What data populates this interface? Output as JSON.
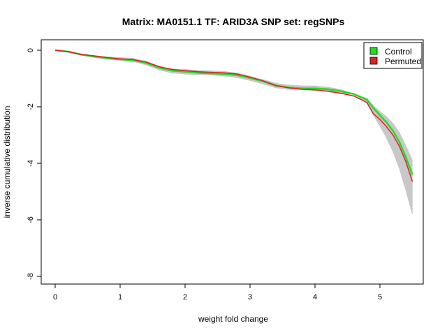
{
  "chart_data": {
    "type": "line",
    "title": "Matrix: MA0151.1 TF: ARID3A SNP set: regSNPs",
    "xlabel": "weight fold change",
    "ylabel": "inverse cumulative distribution",
    "xlim": [
      0,
      5.5
    ],
    "ylim": [
      -8,
      0
    ],
    "xticks": [
      "0",
      "1",
      "2",
      "3",
      "4",
      "5"
    ],
    "yticks": [
      "0",
      "-2",
      "-4",
      "-6",
      "-8"
    ],
    "legend_position": "top-right",
    "grid": false,
    "x": [
      0,
      0.2,
      0.4,
      0.6,
      0.8,
      1.0,
      1.2,
      1.4,
      1.6,
      1.8,
      2.0,
      2.2,
      2.4,
      2.6,
      2.8,
      3.0,
      3.2,
      3.4,
      3.6,
      3.8,
      4.0,
      4.2,
      4.4,
      4.6,
      4.8,
      4.9,
      5.0,
      5.1,
      5.2,
      5.3,
      5.4,
      5.5
    ],
    "series": [
      {
        "name": "Control",
        "color": "#22dd22",
        "values": [
          0,
          -0.05,
          -0.15,
          -0.22,
          -0.28,
          -0.32,
          -0.35,
          -0.45,
          -0.62,
          -0.72,
          -0.76,
          -0.8,
          -0.82,
          -0.84,
          -0.88,
          -0.98,
          -1.1,
          -1.25,
          -1.32,
          -1.35,
          -1.35,
          -1.38,
          -1.45,
          -1.55,
          -1.75,
          -2.05,
          -2.3,
          -2.55,
          -2.85,
          -3.25,
          -3.8,
          -4.4
        ]
      },
      {
        "name": "Permuted",
        "color": "#dd2222",
        "values": [
          0,
          -0.05,
          -0.15,
          -0.2,
          -0.26,
          -0.3,
          -0.33,
          -0.42,
          -0.58,
          -0.68,
          -0.72,
          -0.76,
          -0.78,
          -0.8,
          -0.84,
          -0.95,
          -1.08,
          -1.25,
          -1.33,
          -1.38,
          -1.4,
          -1.45,
          -1.52,
          -1.62,
          -1.85,
          -2.25,
          -2.45,
          -2.7,
          -3.0,
          -3.4,
          -3.95,
          -4.65
        ]
      }
    ],
    "background_lines": {
      "color": "#c8c8c8",
      "count": 40,
      "end_range": [
        -3.9,
        -5.8
      ]
    }
  }
}
